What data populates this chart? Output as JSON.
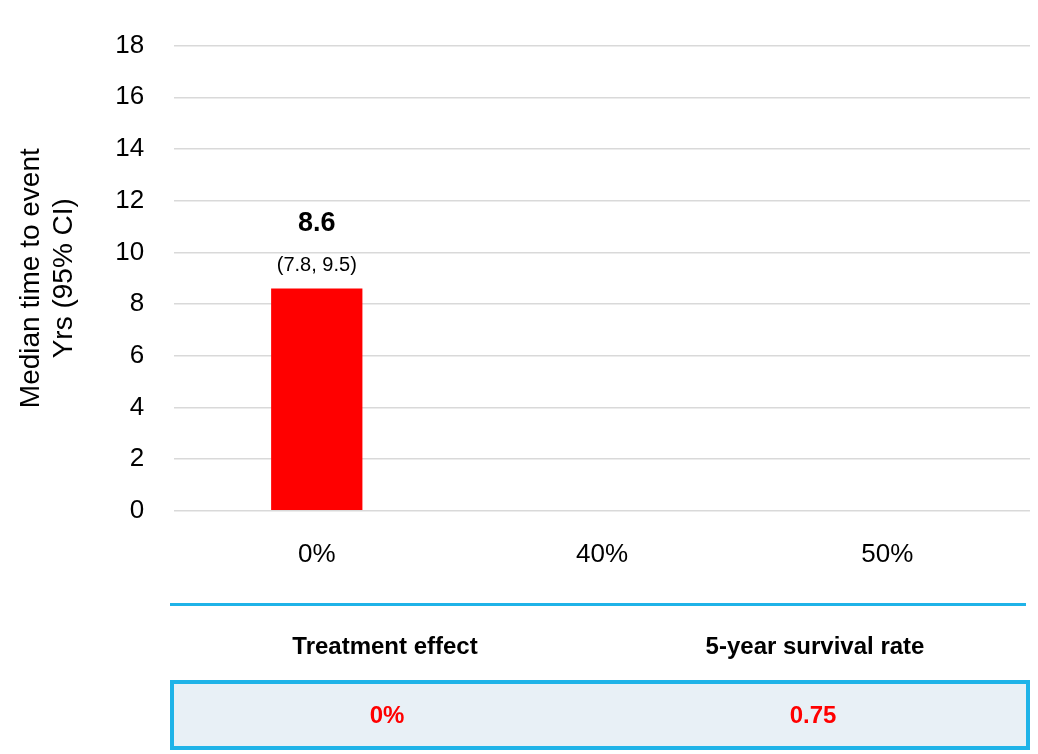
{
  "chart_data": {
    "type": "bar",
    "categories": [
      "0%",
      "40%",
      "50%"
    ],
    "values": [
      8.6,
      null,
      null
    ],
    "color": "#ff0000",
    "value_labels": [
      "8.6",
      null,
      null
    ],
    "ylabel": "Median time to event\nYrs (95% CI)",
    "ylim": [
      0,
      18
    ],
    "yticks": [
      0,
      2,
      4,
      6,
      8,
      10,
      12,
      14,
      16,
      18
    ],
    "grid": "y",
    "legend": false,
    "annotations": [
      {
        "text": "(7.8, 9.5)",
        "x": "0%",
        "y": 8.6
      },
      "Treatment effect",
      "5-year survival rate",
      "0%",
      "0.75"
    ]
  }
}
